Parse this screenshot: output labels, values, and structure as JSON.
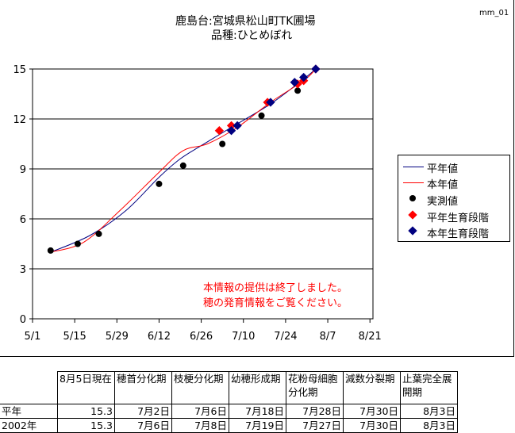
{
  "chart_data": {
    "type": "line",
    "title": "鹿島台:宮城県松山町TK圃場",
    "subtitle": "品種:ひとめぼれ",
    "code": "mm_01",
    "x_ticks": [
      "5/1",
      "5/15",
      "5/29",
      "6/12",
      "6/26",
      "7/10",
      "7/24",
      "8/7",
      "8/21"
    ],
    "y_ticks": [
      "0",
      "3",
      "6",
      "9",
      "12",
      "15"
    ],
    "ylim": [
      0,
      15
    ],
    "xlim_days_from_5_1": [
      0,
      113
    ],
    "grid": "horizontal",
    "legend_position": "right",
    "series": [
      {
        "name": "平年値",
        "color": "#000080",
        "kind": "line",
        "points": [
          [
            "5/7",
            4.0
          ],
          [
            "5/20",
            5.0
          ],
          [
            "6/1",
            6.5
          ],
          [
            "6/12",
            8.5
          ],
          [
            "6/19",
            9.6
          ],
          [
            "6/26",
            10.4
          ],
          [
            "7/6",
            11.5
          ],
          [
            "7/19",
            12.9
          ],
          [
            "7/30",
            14.4
          ],
          [
            "8/3",
            15.0
          ]
        ]
      },
      {
        "name": "本年値",
        "color": "#ff0000",
        "kind": "line",
        "points": [
          [
            "5/7",
            4.0
          ],
          [
            "5/18",
            4.6
          ],
          [
            "5/30",
            6.5
          ],
          [
            "6/12",
            8.8
          ],
          [
            "6/20",
            10.1
          ],
          [
            "6/28",
            10.5
          ],
          [
            "7/8",
            11.5
          ],
          [
            "7/19",
            13.0
          ],
          [
            "7/30",
            14.3
          ],
          [
            "8/3",
            15.0
          ]
        ]
      },
      {
        "name": "実測値",
        "color": "#000000",
        "kind": "circle",
        "points": [
          [
            "5/7",
            4.1
          ],
          [
            "5/16",
            4.5
          ],
          [
            "5/23",
            5.1
          ],
          [
            "6/12",
            8.1
          ],
          [
            "6/20",
            9.2
          ],
          [
            "7/3",
            10.5
          ],
          [
            "7/16",
            12.2
          ],
          [
            "7/28",
            13.7
          ]
        ]
      },
      {
        "name": "平年生育段階",
        "color": "#ff0000",
        "kind": "diamond",
        "points": [
          [
            "7/2",
            11.3
          ],
          [
            "7/6",
            11.6
          ],
          [
            "7/18",
            13.0
          ],
          [
            "7/28",
            14.1
          ],
          [
            "7/30",
            14.3
          ],
          [
            "8/3",
            15.0
          ]
        ]
      },
      {
        "name": "本年生育段階",
        "color": "#000080",
        "kind": "diamond",
        "points": [
          [
            "7/6",
            11.3
          ],
          [
            "7/8",
            11.6
          ],
          [
            "7/19",
            13.0
          ],
          [
            "7/27",
            14.2
          ],
          [
            "7/30",
            14.5
          ],
          [
            "8/3",
            15.0
          ]
        ]
      }
    ],
    "annotation": [
      "本情報の提供は終了しました。",
      "穂の発育情報をご覧ください。"
    ]
  },
  "table": {
    "headers": [
      "",
      "8月5日現在",
      "穂首分化期",
      "枝梗分化期",
      "幼穂形成期",
      "花粉母細胞分化期",
      "減数分裂期",
      "止葉完全展開期"
    ],
    "rows": [
      [
        "平年",
        "15.3",
        "7月2日",
        "7月6日",
        "7月18日",
        "7月28日",
        "7月30日",
        "8月3日"
      ],
      [
        "2002年",
        "15.3",
        "7月6日",
        "7月8日",
        "7月19日",
        "7月27日",
        "7月30日",
        "8月3日"
      ]
    ]
  }
}
